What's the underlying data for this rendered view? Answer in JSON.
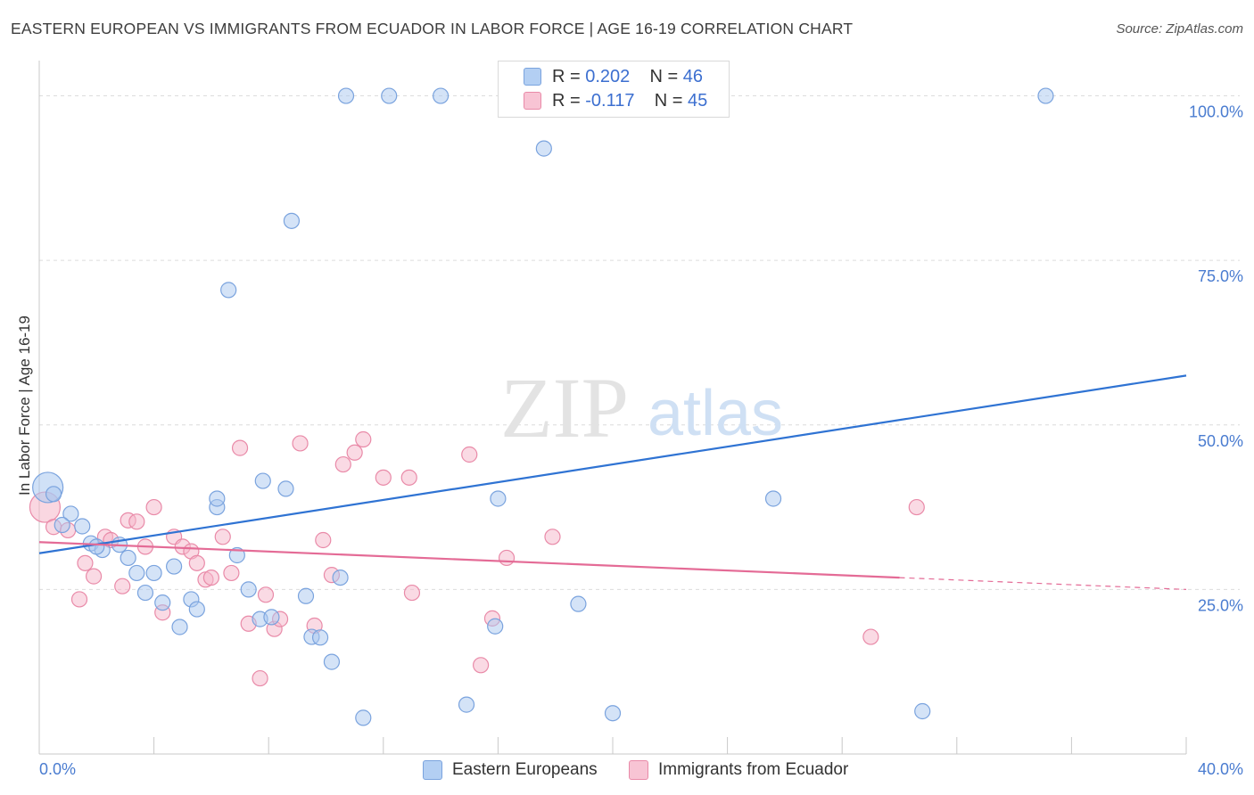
{
  "header": {
    "title": "EASTERN EUROPEAN VS IMMIGRANTS FROM ECUADOR IN LABOR FORCE | AGE 16-19 CORRELATION CHART",
    "source": "Source: ZipAtlas.com"
  },
  "watermark": {
    "zip": "ZIP",
    "atlas": "atlas"
  },
  "legend": {
    "rows": [
      {
        "r_label": "R = ",
        "r_value": "0.202",
        "n_label": "N = ",
        "n_value": "46"
      },
      {
        "r_label": "R = ",
        "r_value": "-0.117",
        "n_label": "N = ",
        "n_value": "45"
      }
    ]
  },
  "bottom_legend": {
    "items": [
      {
        "label": "Eastern Europeans"
      },
      {
        "label": "Immigrants from Ecuador"
      }
    ]
  },
  "colors": {
    "blue_fill": "#a9c8f0",
    "blue_stroke": "#7aa3de",
    "blue_line": "#2f73d3",
    "pink_fill": "#f6b6c9",
    "pink_stroke": "#e98aa8",
    "pink_line": "#e46b96",
    "grid": "#dcdcdc",
    "tick_text": "#4a7cd0"
  },
  "chart_data": {
    "type": "scatter",
    "title": "EASTERN EUROPEAN VS IMMIGRANTS FROM ECUADOR IN LABOR FORCE | AGE 16-19 CORRELATION CHART",
    "xlabel": "",
    "ylabel": "In Labor Force | Age 16-19",
    "xlim": [
      0,
      40
    ],
    "ylim": [
      0,
      104
    ],
    "x_tick_labels": [
      "0.0%",
      "40.0%"
    ],
    "y_ticks": [
      25,
      50,
      75,
      100
    ],
    "y_tick_labels": [
      "25.0%",
      "50.0%",
      "75.0%",
      "100.0%"
    ],
    "grid": true,
    "legend_position": "top-center",
    "series": [
      {
        "name": "Eastern Europeans",
        "R": 0.202,
        "N": 46,
        "trend": {
          "x": [
            0,
            40
          ],
          "y": [
            30.5,
            57.5
          ],
          "dashed_from": null
        },
        "points": [
          [
            0.3,
            40.5,
            "large"
          ],
          [
            0.5,
            39.5
          ],
          [
            1.1,
            36.5
          ],
          [
            0.8,
            34.8
          ],
          [
            1.5,
            34.6
          ],
          [
            1.8,
            32.0
          ],
          [
            2.2,
            31.0
          ],
          [
            2.8,
            31.8
          ],
          [
            3.1,
            29.8
          ],
          [
            3.4,
            27.5
          ],
          [
            2.0,
            31.5
          ],
          [
            4.0,
            27.5
          ],
          [
            4.7,
            28.5
          ],
          [
            3.7,
            24.5
          ],
          [
            4.3,
            23.0
          ],
          [
            5.3,
            23.5
          ],
          [
            4.9,
            19.3
          ],
          [
            5.5,
            22.0
          ],
          [
            6.2,
            37.5
          ],
          [
            6.2,
            38.8
          ],
          [
            6.9,
            30.2
          ],
          [
            7.3,
            25.0
          ],
          [
            7.7,
            20.5
          ],
          [
            8.1,
            20.8
          ],
          [
            9.3,
            24.0
          ],
          [
            9.5,
            17.8
          ],
          [
            9.8,
            17.7
          ],
          [
            10.2,
            14.0
          ],
          [
            10.5,
            26.8
          ],
          [
            8.6,
            40.3
          ],
          [
            7.8,
            41.5
          ],
          [
            11.3,
            5.5
          ],
          [
            14.9,
            7.5
          ],
          [
            15.9,
            19.4
          ],
          [
            16.0,
            38.8
          ],
          [
            18.8,
            22.8
          ],
          [
            20.0,
            6.2
          ],
          [
            25.6,
            38.8
          ],
          [
            30.8,
            6.5
          ],
          [
            6.6,
            70.5
          ],
          [
            8.8,
            81.0
          ],
          [
            10.7,
            100.0
          ],
          [
            12.2,
            100.0
          ],
          [
            14.0,
            100.0
          ],
          [
            17.6,
            92.0
          ],
          [
            35.1,
            100.0
          ]
        ]
      },
      {
        "name": "Immigrants from Ecuador",
        "R": -0.117,
        "N": 45,
        "trend": {
          "x": [
            0,
            40
          ],
          "y": [
            32.2,
            25.0
          ],
          "dashed_from": 30.0
        },
        "points": [
          [
            0.2,
            37.5,
            "large"
          ],
          [
            0.5,
            34.5
          ],
          [
            1.0,
            34.0
          ],
          [
            1.4,
            23.5
          ],
          [
            1.6,
            29.0
          ],
          [
            1.9,
            27.0
          ],
          [
            2.3,
            33.0
          ],
          [
            2.5,
            32.5
          ],
          [
            2.9,
            25.5
          ],
          [
            3.1,
            35.5
          ],
          [
            3.4,
            35.3
          ],
          [
            3.7,
            31.5
          ],
          [
            4.0,
            37.5
          ],
          [
            4.3,
            21.5
          ],
          [
            4.7,
            33.0
          ],
          [
            5.0,
            31.5
          ],
          [
            5.3,
            30.8
          ],
          [
            5.5,
            29.0
          ],
          [
            5.8,
            26.5
          ],
          [
            6.0,
            26.8
          ],
          [
            6.4,
            33.0
          ],
          [
            6.7,
            27.5
          ],
          [
            7.0,
            46.5
          ],
          [
            7.3,
            19.8
          ],
          [
            7.7,
            11.5
          ],
          [
            7.9,
            24.2
          ],
          [
            8.2,
            19.0
          ],
          [
            8.4,
            20.5
          ],
          [
            9.1,
            47.2
          ],
          [
            9.6,
            19.5
          ],
          [
            9.9,
            32.5
          ],
          [
            10.2,
            27.2
          ],
          [
            10.6,
            44.0
          ],
          [
            11.0,
            45.8
          ],
          [
            11.3,
            47.8
          ],
          [
            12.0,
            42.0
          ],
          [
            12.9,
            42.0
          ],
          [
            13.0,
            24.5
          ],
          [
            15.0,
            45.5
          ],
          [
            15.4,
            13.5
          ],
          [
            15.8,
            20.6
          ],
          [
            16.3,
            29.8
          ],
          [
            17.9,
            33.0
          ],
          [
            29.0,
            17.8
          ],
          [
            30.6,
            37.5
          ]
        ]
      }
    ]
  }
}
